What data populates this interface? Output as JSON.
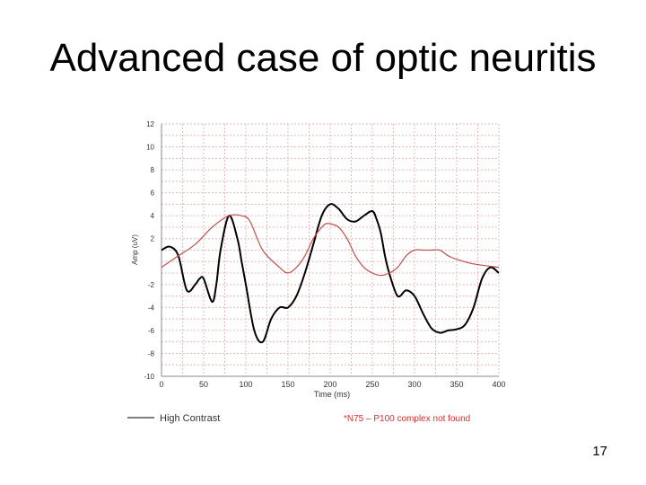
{
  "slide": {
    "title": "Advanced case of optic neuritis",
    "page_number": "17"
  },
  "chart_data": {
    "type": "line",
    "xlabel": "Time (ms)",
    "ylabel": "Amp (uV)",
    "xlim": [
      0,
      400
    ],
    "ylim": [
      -10,
      12
    ],
    "xticks": [
      "0",
      "50",
      "100",
      "150",
      "200",
      "250",
      "300",
      "350",
      "400"
    ],
    "yticks": [
      "12",
      "10",
      "8",
      "6",
      "4",
      "2",
      "-2",
      "-4",
      "-6",
      "-8",
      "-10"
    ],
    "grid": true,
    "legend_position": "bottom-left",
    "series": [
      {
        "name": "High Contrast",
        "color": "#000000",
        "x": [
          0,
          10,
          20,
          30,
          40,
          45,
          50,
          60,
          65,
          70,
          80,
          90,
          95,
          100,
          110,
          120,
          130,
          140,
          150,
          160,
          170,
          180,
          190,
          200,
          210,
          220,
          230,
          240,
          250,
          255,
          260,
          265,
          270,
          280,
          290,
          300,
          310,
          320,
          330,
          340,
          350,
          360,
          370,
          380,
          390,
          400
        ],
        "y": [
          1,
          1.3,
          0.5,
          -2.5,
          -2,
          -1.5,
          -1.5,
          -3.5,
          -2,
          1,
          4,
          2,
          0,
          -2,
          -6,
          -7,
          -5,
          -4,
          -4,
          -3,
          -1,
          1.5,
          4,
          5,
          4.6,
          3.7,
          3.5,
          4,
          4.4,
          3.7,
          2.5,
          0.5,
          -1,
          -3,
          -2.5,
          -3,
          -4.5,
          -5.8,
          -6.2,
          -6,
          -5.9,
          -5.5,
          -4,
          -1.5,
          -0.5,
          -1
        ]
      },
      {
        "name": "",
        "color": "#c0504d",
        "x": [
          0,
          20,
          40,
          60,
          80,
          95,
          105,
          120,
          140,
          150,
          160,
          170,
          180,
          190,
          195,
          200,
          210,
          220,
          230,
          240,
          250,
          260,
          270,
          280,
          290,
          300,
          310,
          320,
          330,
          340,
          350,
          370,
          400
        ],
        "y": [
          -0.5,
          0.5,
          1.5,
          3,
          4,
          4,
          3.5,
          1,
          -0.5,
          -1,
          -0.5,
          0.5,
          2,
          3,
          3.3,
          3.3,
          3,
          2,
          0.5,
          -0.5,
          -1,
          -1.2,
          -1,
          -0.5,
          0.5,
          1,
          1,
          1,
          1,
          0.5,
          0.2,
          -0.2,
          -0.5
        ]
      }
    ],
    "legend": [
      {
        "label": "High Contrast"
      }
    ],
    "annotation": "*N75 – P100 complex not found"
  }
}
